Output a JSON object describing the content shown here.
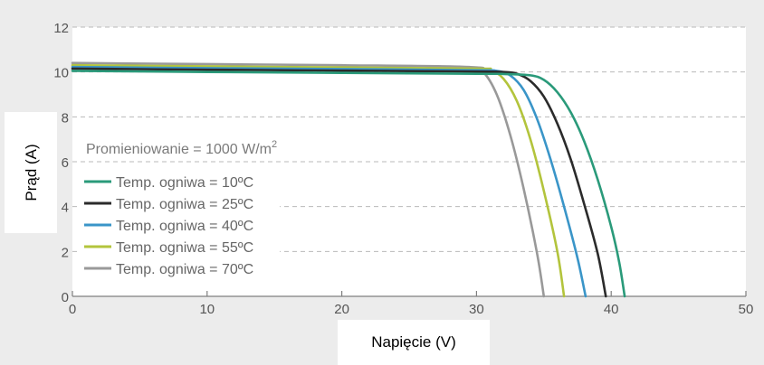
{
  "chart_data": {
    "type": "line",
    "xlabel": "Napięcie (V)",
    "ylabel": "Prąd (A)",
    "xlim": [
      0,
      50
    ],
    "ylim": [
      0,
      12
    ],
    "x_ticks": [
      "0",
      "10",
      "20",
      "30",
      "40",
      "50"
    ],
    "y_ticks": [
      "0",
      "2",
      "4",
      "6",
      "8",
      "10",
      "12"
    ],
    "grid": "horizontal dashed",
    "legend_title": "Promieniowanie = 1000 W/m",
    "legend_title_sup": "2",
    "legend_position": "center-left",
    "series": [
      {
        "name": "Temp. ogniwa = 10ºC",
        "color": "#2a9a7a",
        "points": [
          [
            0,
            10.05
          ],
          [
            10,
            10.0
          ],
          [
            20,
            9.96
          ],
          [
            30,
            9.92
          ],
          [
            32,
            9.91
          ],
          [
            34,
            9.85
          ],
          [
            35,
            9.65
          ],
          [
            36,
            9.1
          ],
          [
            37,
            8.2
          ],
          [
            38,
            6.9
          ],
          [
            39,
            5.2
          ],
          [
            40,
            3.1
          ],
          [
            40.6,
            1.5
          ],
          [
            41.0,
            0
          ]
        ]
      },
      {
        "name": "Temp. ogniwa = 25ºC",
        "color": "#2b2b2b",
        "points": [
          [
            0,
            10.15
          ],
          [
            10,
            10.1
          ],
          [
            20,
            10.06
          ],
          [
            30,
            10.02
          ],
          [
            32,
            10.0
          ],
          [
            33,
            9.92
          ],
          [
            34,
            9.6
          ],
          [
            35,
            8.9
          ],
          [
            36,
            7.7
          ],
          [
            37,
            6.1
          ],
          [
            38,
            4.1
          ],
          [
            39,
            1.9
          ],
          [
            39.6,
            0
          ]
        ]
      },
      {
        "name": "Temp. ogniwa = 40ºC",
        "color": "#3a95c8",
        "points": [
          [
            0,
            10.22
          ],
          [
            10,
            10.17
          ],
          [
            20,
            10.13
          ],
          [
            30,
            10.08
          ],
          [
            31.5,
            10.05
          ],
          [
            32.5,
            9.85
          ],
          [
            33.5,
            9.2
          ],
          [
            34.5,
            7.9
          ],
          [
            35.5,
            6.1
          ],
          [
            36.5,
            4.0
          ],
          [
            37.5,
            1.7
          ],
          [
            38.1,
            0
          ]
        ]
      },
      {
        "name": "Temp. ogniwa = 55ºC",
        "color": "#b3c43c",
        "points": [
          [
            0,
            10.3
          ],
          [
            10,
            10.25
          ],
          [
            20,
            10.2
          ],
          [
            30,
            10.15
          ],
          [
            31,
            10.1
          ],
          [
            32,
            9.7
          ],
          [
            33,
            8.7
          ],
          [
            34,
            7.0
          ],
          [
            35,
            4.7
          ],
          [
            36,
            2.0
          ],
          [
            36.5,
            0
          ]
        ]
      },
      {
        "name": "Temp. ogniwa = 70ºC",
        "color": "#999999",
        "points": [
          [
            0,
            10.4
          ],
          [
            10,
            10.35
          ],
          [
            20,
            10.3
          ],
          [
            29.5,
            10.22
          ],
          [
            30.5,
            10.0
          ],
          [
            31.5,
            9.0
          ],
          [
            32.5,
            7.2
          ],
          [
            33.5,
            4.8
          ],
          [
            34.5,
            1.9
          ],
          [
            35.0,
            0
          ]
        ]
      }
    ]
  }
}
